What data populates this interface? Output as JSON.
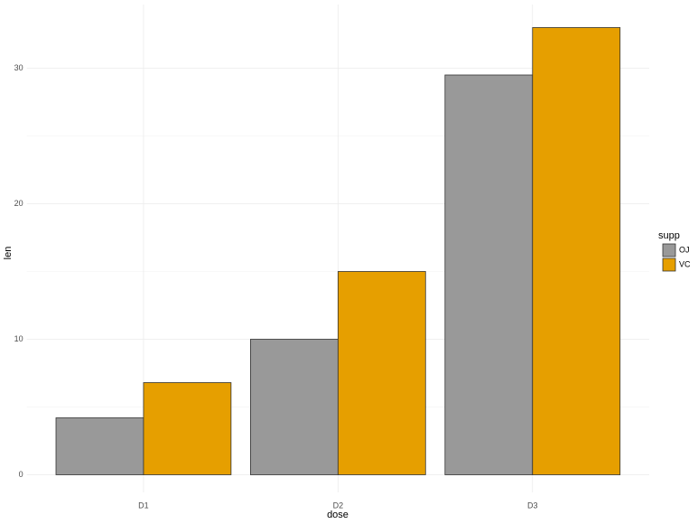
{
  "chart_data": {
    "type": "bar",
    "x_label": "dose",
    "y_label": "len",
    "categories": [
      "D1",
      "D2",
      "D3"
    ],
    "series": [
      {
        "name": "OJ",
        "color": "#999999",
        "values": [
          4.2,
          10,
          29.5
        ]
      },
      {
        "name": "VC",
        "color": "#E69F00",
        "values": [
          6.8,
          15,
          33
        ]
      }
    ],
    "ylim": [
      -1.3,
      34.7
    ],
    "yticks": [
      0,
      10,
      20,
      30
    ],
    "yminor": [
      5,
      15,
      25
    ],
    "grid": true,
    "legend_title": "supp",
    "legend_position": "right"
  }
}
